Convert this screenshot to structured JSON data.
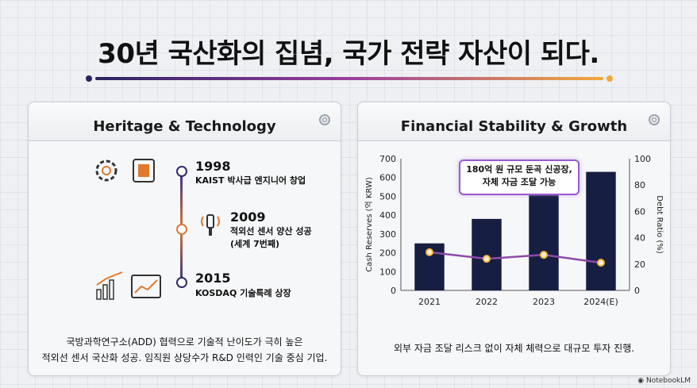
{
  "title": "30년 국산화의 집념, 국가 전략 자산이 되다.",
  "left_panel": {
    "heading": "Heritage & Technology",
    "timeline": [
      {
        "year": "1998",
        "lines": [
          "KAIST 박사급 엔지니어 창업"
        ],
        "icon": "gear-chip-icon"
      },
      {
        "year": "2009",
        "lines": [
          "적외선 센서 양산 성공",
          "(세계 7번째)"
        ],
        "icon": "sensor-icon"
      },
      {
        "year": "2015",
        "lines": [
          "KOSDAQ 기술특례 상장"
        ],
        "icon": "growth-chart-icon"
      }
    ],
    "footer_lines": [
      "국방과학연구소(ADD) 협력으로 기술적 난이도가 극히 높은",
      "적외선 센서 국산화 성공. 임직원 상당수가 R&D 인력인 기술 중심 기업."
    ]
  },
  "right_panel": {
    "heading": "Financial Stability & Growth",
    "callout_lines": [
      "180억 원 규모 둔곡 신공장,",
      "자체 자금 조달 가능"
    ],
    "footer": "외부 자금 조달 리스크 없이 자체 체력으로 대규모 투자 진행."
  },
  "chart_data": {
    "type": "bar",
    "categories": [
      "2021",
      "2022",
      "2023",
      "2024(E)"
    ],
    "series": [
      {
        "name": "Cash Reserves",
        "type": "bar",
        "axis": "left",
        "values": [
          250,
          380,
          505,
          630
        ],
        "color": "#161e42"
      },
      {
        "name": "Debt Ratio",
        "type": "line",
        "axis": "right",
        "values": [
          29,
          24,
          27,
          21
        ],
        "color": "#8e4aa8"
      }
    ],
    "ylabel": "Cash Reserves (억 KRW)",
    "y2label": "Debt Ratio (%)",
    "ylim": [
      0,
      700
    ],
    "y2lim": [
      0,
      100
    ],
    "yticks": [
      0,
      100,
      200,
      300,
      400,
      500,
      600,
      700
    ],
    "y2ticks": [
      0,
      20,
      40,
      60,
      80,
      100
    ]
  },
  "branding": "NotebookLM"
}
